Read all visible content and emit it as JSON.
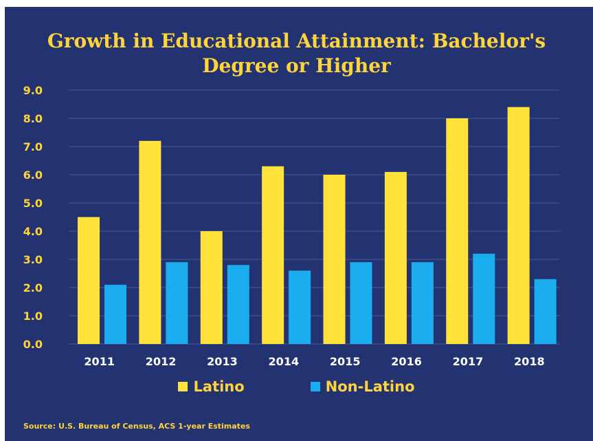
{
  "title_line1": "Growth in Educational Attainment: Bachelor's",
  "title_line2": "Degree or Higher",
  "source": "Source: U.S. Bureau of Census, ACS 1-year Estimates",
  "colors": {
    "background": "#233372",
    "latino": "#ffe23a",
    "non_latino": "#1aaef0",
    "title_text": "#ffd43a",
    "category_text": "#ffffff",
    "gridline": "#4a5a92"
  },
  "chart_data": {
    "type": "bar",
    "title": "Growth in Educational Attainment: Bachelor's Degree or Higher",
    "xlabel": "",
    "ylabel": "",
    "categories": [
      "2011",
      "2012",
      "2013",
      "2014",
      "2015",
      "2016",
      "2017",
      "2018"
    ],
    "series": [
      {
        "name": "Latino",
        "values": [
          4.5,
          7.2,
          4.0,
          6.3,
          6.0,
          6.1,
          8.0,
          8.4
        ]
      },
      {
        "name": "Non-Latino",
        "values": [
          2.1,
          2.9,
          2.8,
          2.6,
          2.9,
          2.9,
          3.2,
          2.3
        ]
      }
    ],
    "y_ticks": [
      "0.0",
      "1.0",
      "2.0",
      "3.0",
      "4.0",
      "5.0",
      "6.0",
      "7.0",
      "8.0",
      "9.0"
    ],
    "ylim": [
      0,
      9
    ],
    "grid": true,
    "legend_position": "bottom"
  }
}
